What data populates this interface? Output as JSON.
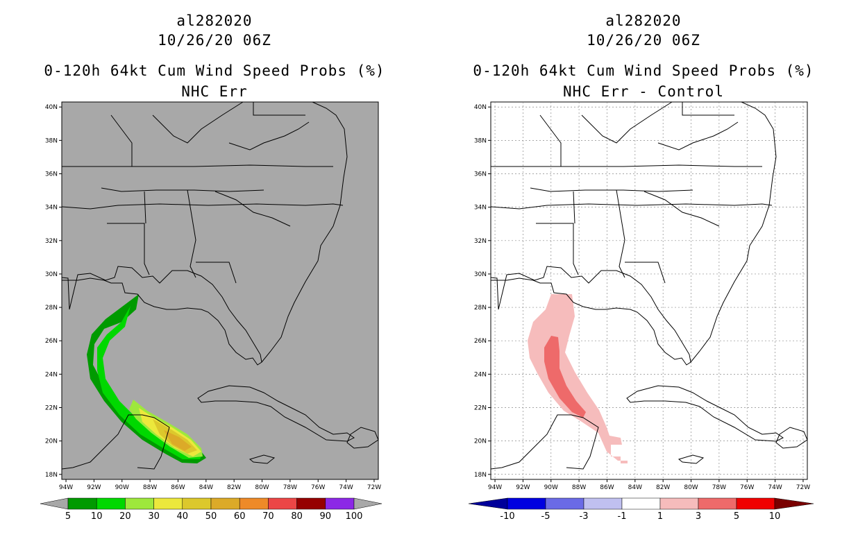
{
  "panels": [
    {
      "storm_id": "al282020",
      "datetime": "10/26/20 06Z",
      "product": "0-120h 64kt Cum Wind Speed Probs (%)",
      "subtitle": "NHC Err",
      "background": "#a8a8a8",
      "legend": {
        "labels": [
          "5",
          "10",
          "20",
          "30",
          "40",
          "50",
          "60",
          "70",
          "80",
          "90",
          "100"
        ],
        "colors": [
          "#009a00",
          "#00d800",
          "#9ee83c",
          "#ece83c",
          "#dcc82c",
          "#dcaa28",
          "#ee8a28",
          "#ec4646",
          "#960000",
          "#8c28e6"
        ],
        "end_color": "#a8a8a8"
      }
    },
    {
      "storm_id": "al282020",
      "datetime": "10/26/20 06Z",
      "product": "0-120h 64kt Cum Wind Speed Probs (%)",
      "subtitle": "NHC Err - Control",
      "background": "#ffffff",
      "legend": {
        "labels": [
          "-10",
          "-5",
          "-3",
          "-1",
          "1",
          "3",
          "5",
          "10"
        ],
        "colors": [
          "#0000e0",
          "#6a6ae6",
          "#c0c0f0",
          "#ffffff",
          "#f6bcbc",
          "#ee6a6a",
          "#f00000"
        ],
        "low_end_color": "#00009a",
        "high_end_color": "#7a0000"
      }
    }
  ],
  "lat_labels": [
    "40N",
    "38N",
    "36N",
    "34N",
    "32N",
    "30N",
    "28N",
    "26N",
    "24N",
    "22N",
    "20N",
    "18N"
  ],
  "lon_labels": [
    "94W",
    "92W",
    "90W",
    "88W",
    "86W",
    "84W",
    "82W",
    "80W",
    "78W",
    "76W",
    "74W",
    "72W"
  ],
  "lat_values": [
    40,
    38,
    36,
    34,
    32,
    30,
    28,
    26,
    24,
    22,
    20,
    18
  ],
  "lon_values": [
    -94,
    -92,
    -90,
    -88,
    -86,
    -84,
    -82,
    -80,
    -78,
    -76,
    -74,
    -72
  ]
}
